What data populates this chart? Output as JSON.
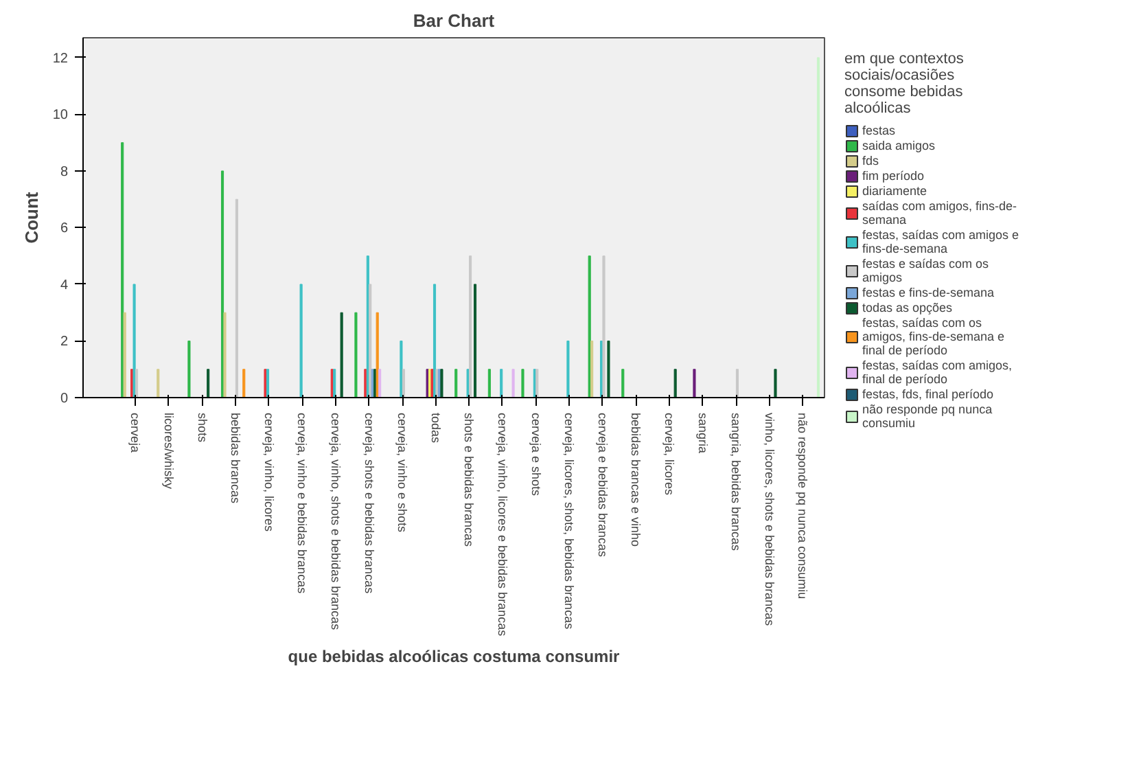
{
  "chart_data": {
    "type": "bar",
    "title": "Bar Chart",
    "xlabel": "que bebidas alcoólicas costuma consumir",
    "ylabel": "Count",
    "legend_title": "em que contextos sociais/ocasiões consome bebidas alcoólicas",
    "categories": [
      "cerveja",
      "licores/whisky",
      "shots",
      "bebidas brancas",
      "cerveja, vinho, licores",
      "cerveja, vinho e bebidas brancas",
      "cerveja, vinho, shots e bebidas brancas",
      "cerveja, shots e bebidas brancas",
      "cerveja, vinho e shots",
      "todas",
      "shots e bebidas brancas",
      "cerveja, vinho, licores e bebidas brancas",
      "cerveja e shots",
      "cerveja, licores, shots, bebidas brancas",
      "cerveja e bebidas brancas",
      "bebidas brancas e vinho",
      "cerveja, licores",
      "sangria",
      "sangria, bebidas brancas",
      "vinho, licores, shots e bebidas brancas",
      "não responde pq nunca consumiu"
    ],
    "series": [
      {
        "name": "festas",
        "color": "#3d5fbf",
        "values": [
          0,
          0,
          0,
          0,
          0,
          0,
          0,
          0,
          0,
          0,
          0,
          0,
          0,
          0,
          0,
          0,
          0,
          0,
          0,
          0,
          0
        ]
      },
      {
        "name": "saida amigos",
        "color": "#2fb84a",
        "values": [
          9,
          0,
          2,
          8,
          0,
          0,
          0,
          3,
          0,
          0,
          1,
          1,
          1,
          0,
          5,
          1,
          0,
          0,
          0,
          0,
          0
        ]
      },
      {
        "name": "fds",
        "color": "#d4cc8a",
        "values": [
          3,
          1,
          0,
          3,
          0,
          0,
          0,
          0,
          0,
          0,
          0,
          0,
          0,
          0,
          2,
          0,
          0,
          0,
          0,
          0,
          0
        ]
      },
      {
        "name": "fim período",
        "color": "#6b1f7a",
        "values": [
          0,
          0,
          0,
          0,
          0,
          0,
          0,
          0,
          0,
          1,
          0,
          0,
          0,
          0,
          0,
          0,
          0,
          1,
          0,
          0,
          0
        ]
      },
      {
        "name": "diariamente",
        "color": "#f5f064",
        "values": [
          0,
          0,
          0,
          0,
          0,
          0,
          0,
          0,
          0,
          1,
          0,
          0,
          0,
          0,
          0,
          0,
          0,
          0,
          0,
          0,
          0
        ]
      },
      {
        "name": "saídas com amigos, fins-de-semana",
        "color": "#e8333b",
        "values": [
          1,
          0,
          0,
          0,
          1,
          0,
          1,
          1,
          0,
          1,
          0,
          0,
          0,
          0,
          0,
          0,
          0,
          0,
          0,
          0,
          0
        ]
      },
      {
        "name": "festas, saídas com amigos e fins-de-semana",
        "color": "#3ec1c6",
        "values": [
          4,
          0,
          0,
          0,
          1,
          4,
          1,
          5,
          2,
          4,
          1,
          1,
          1,
          2,
          2,
          0,
          0,
          0,
          0,
          0,
          0
        ]
      },
      {
        "name": "festas e saídas com os amigos",
        "color": "#c8c8c8",
        "values": [
          1,
          0,
          0,
          7,
          0,
          0,
          0,
          4,
          1,
          1,
          5,
          0,
          1,
          0,
          5,
          0,
          0,
          0,
          1,
          0,
          0
        ]
      },
      {
        "name": "festas e fins-de-semana",
        "color": "#7aa6d8",
        "values": [
          0,
          0,
          0,
          0,
          0,
          0,
          0,
          1,
          0,
          1,
          0,
          0,
          0,
          0,
          0,
          0,
          0,
          0,
          0,
          0,
          0
        ]
      },
      {
        "name": "todas as opções",
        "color": "#0c5a30",
        "values": [
          0,
          0,
          1,
          0,
          0,
          0,
          3,
          1,
          0,
          1,
          4,
          0,
          0,
          0,
          2,
          0,
          1,
          0,
          0,
          1,
          0
        ]
      },
      {
        "name": "festas, saídas com os amigos, fins-de-semana e final de período",
        "color": "#f7941d",
        "values": [
          0,
          0,
          0,
          1,
          0,
          0,
          0,
          3,
          0,
          0,
          0,
          0,
          0,
          0,
          0,
          0,
          0,
          0,
          0,
          0,
          0
        ]
      },
      {
        "name": "festas, saídas com amigos, final de período",
        "color": "#e0b4f0",
        "values": [
          0,
          0,
          0,
          0,
          0,
          0,
          0,
          1,
          0,
          0,
          0,
          1,
          0,
          0,
          0,
          0,
          0,
          0,
          0,
          0,
          0
        ]
      },
      {
        "name": "festas, fds, final período",
        "color": "#1d5b74",
        "values": [
          0,
          0,
          0,
          0,
          0,
          0,
          0,
          0,
          0,
          0,
          0,
          0,
          0,
          0,
          0,
          0,
          0,
          0,
          0,
          0,
          0
        ]
      },
      {
        "name": "não responde pq nunca consumiu",
        "color": "#c8f5c8",
        "values": [
          0,
          0,
          0,
          0,
          0,
          0,
          0,
          0,
          0,
          0,
          0,
          0,
          0,
          0,
          0,
          0,
          0,
          0,
          0,
          0,
          12
        ]
      }
    ],
    "ylim": [
      0,
      12.7
    ],
    "yticks": [
      0,
      2,
      4,
      6,
      8,
      10,
      12
    ],
    "grid": false,
    "legend": "right"
  }
}
